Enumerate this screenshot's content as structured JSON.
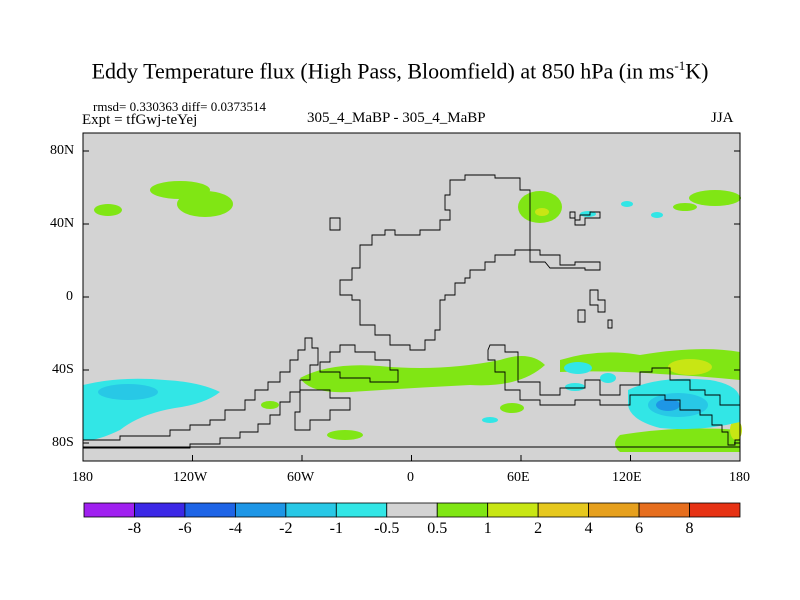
{
  "chart_data": {
    "type": "heatmap",
    "title": "Eddy Temperature flux (High Pass, Bloomfield) at 850 hPa (in ms",
    "title_sup": "-1",
    "title_end": "K)",
    "stats": "rmsd= 0.330363 diff= 0.0373514",
    "expt": "Expt = tfGwj-teYej",
    "subtitle": "305_4_MaBP - 305_4_MaBP",
    "season": "JJA",
    "x_ticks": [
      "180",
      "120W",
      "60W",
      "0",
      "60E",
      "120E",
      "180"
    ],
    "y_ticks": [
      "80N",
      "40N",
      "0",
      "40S",
      "80S"
    ],
    "lon_range": [
      -180,
      180
    ],
    "lat_range": [
      -90,
      90
    ],
    "colorbar_levels": [
      "-8",
      "-6",
      "-4",
      "-2",
      "-1",
      "-0.5",
      "0.5",
      "1",
      "2",
      "4",
      "6",
      "8"
    ],
    "colorbar_colors": [
      "#a020f0",
      "#3c28e6",
      "#1e64e6",
      "#1e96e6",
      "#28c8e6",
      "#32e6e6",
      "#d3d3d3",
      "#80e614",
      "#c8e614",
      "#e6c81e",
      "#e6a01e",
      "#e66e1e",
      "#e63214"
    ]
  }
}
